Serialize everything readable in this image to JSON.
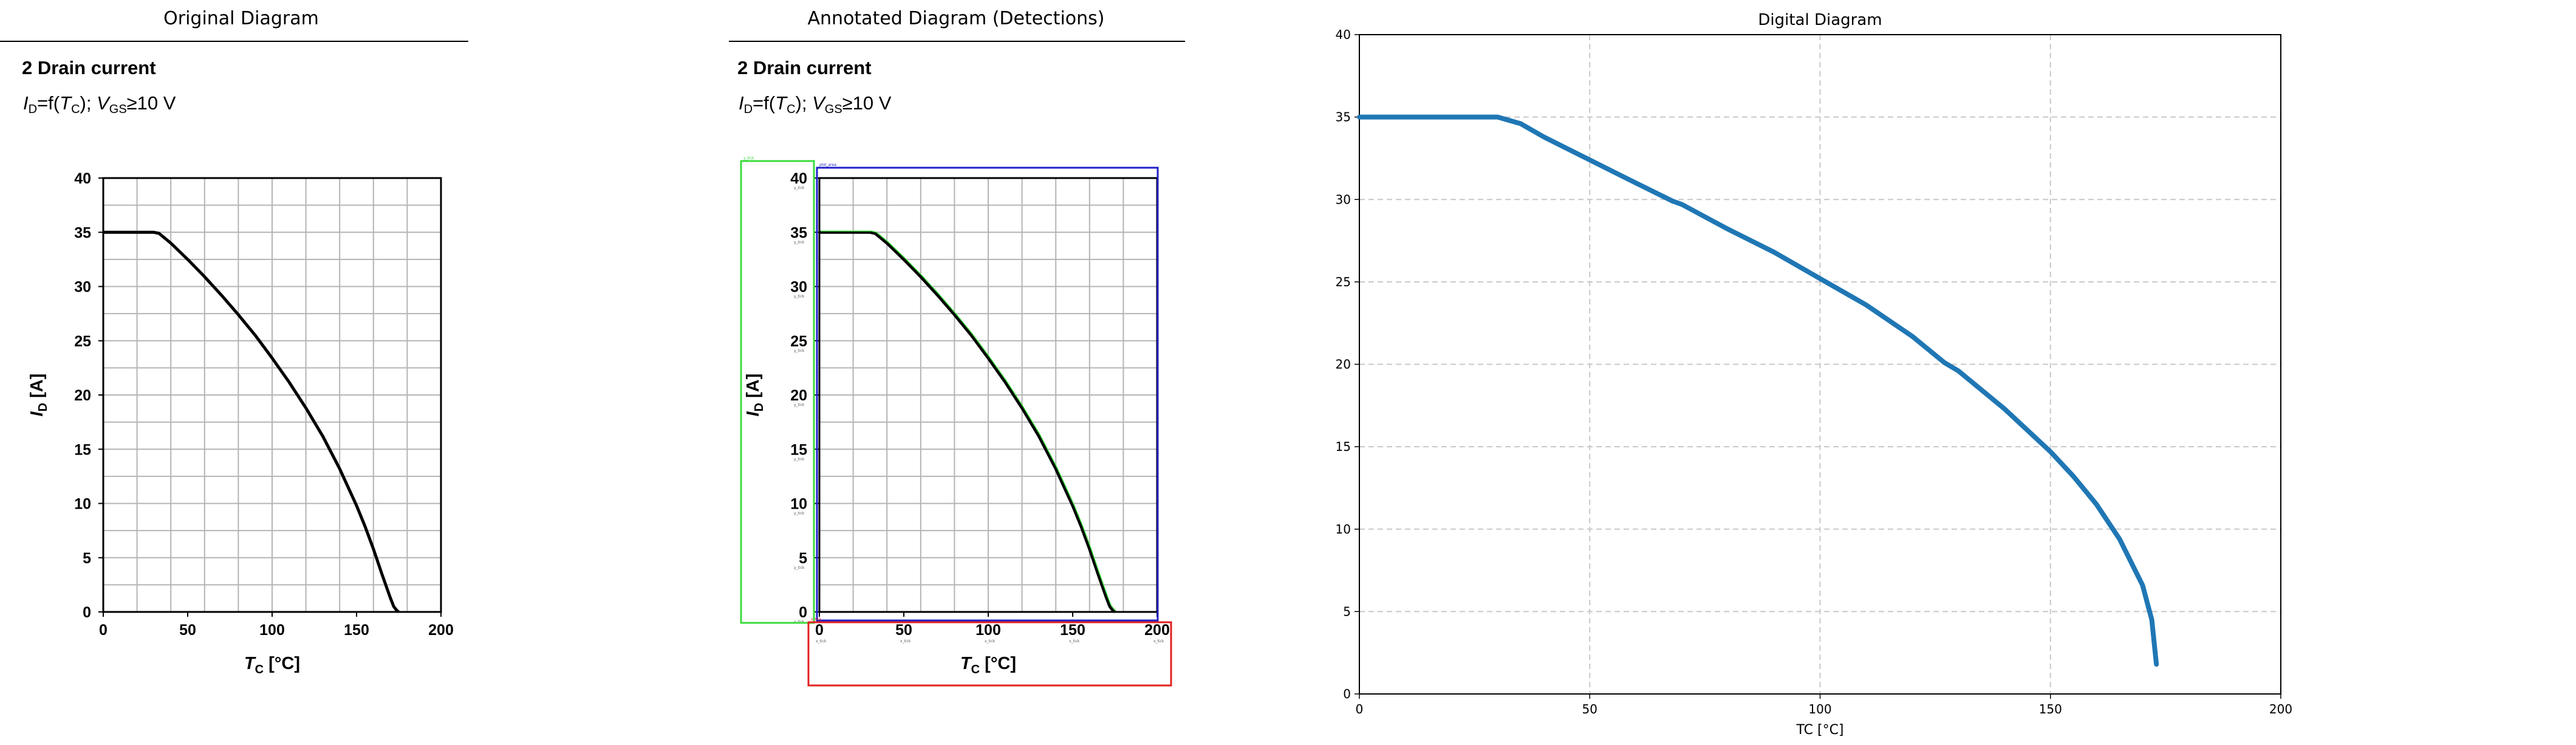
{
  "panels": {
    "original": {
      "header": "Original Diagram"
    },
    "annotated": {
      "header": "Annotated Diagram (Detections)",
      "detections": [
        {
          "label": "y_tick",
          "color": "#3cdc3c"
        },
        {
          "label": "plot_area",
          "color": "#2020c8"
        },
        {
          "label": "x_tick",
          "color": "#e02020"
        }
      ]
    },
    "digital": {
      "header": "Digital Diagram"
    }
  },
  "datasheet": {
    "title": "2 Drain current",
    "subtitle_i": "I",
    "subtitle_d": "D",
    "subtitle_f": "=f(",
    "subtitle_t": "T",
    "subtitle_c": "C",
    "subtitle_close": ");",
    "subtitle_v": "V",
    "subtitle_gs": "GS",
    "subtitle_cond": "≥10 V",
    "ylabel_i": "I",
    "ylabel_sub": "D",
    "ylabel_unit": " [A]",
    "xlabel_t": "T",
    "xlabel_sub": "C",
    "xlabel_unit": " [°C]"
  },
  "colors": {
    "curve": "#000000",
    "digital_line": "#1f77b4",
    "detected_curve": "#3cdc3c"
  },
  "chart_data": [
    {
      "type": "line",
      "title": "2 Drain current",
      "xlabel": "TC [°C]",
      "ylabel": "ID [A]",
      "xlim": [
        0,
        200
      ],
      "ylim": [
        0,
        40
      ],
      "xticks": [
        0,
        50,
        100,
        150,
        200
      ],
      "yticks": [
        0,
        5,
        10,
        15,
        20,
        25,
        30,
        35,
        40
      ],
      "grid": true,
      "series": [
        {
          "x": [
            0,
            10,
            20,
            30,
            33,
            40,
            50,
            60,
            70,
            80,
            90,
            100,
            110,
            120,
            130,
            140,
            150,
            155,
            160,
            165,
            170,
            172,
            174,
            175
          ],
          "y": [
            35,
            35,
            35,
            35,
            34.9,
            34.0,
            32.5,
            30.9,
            29.2,
            27.4,
            25.5,
            23.4,
            21.2,
            18.8,
            16.2,
            13.2,
            9.8,
            7.9,
            5.8,
            3.5,
            1.3,
            0.5,
            0.1,
            0
          ]
        }
      ]
    },
    {
      "type": "line",
      "title": "Digital Diagram",
      "xlabel": "TC [°C]",
      "ylabel": "",
      "xlim": [
        0,
        200
      ],
      "ylim": [
        0,
        40
      ],
      "xticks": [
        0,
        50,
        100,
        150,
        200
      ],
      "yticks": [
        0,
        5,
        10,
        15,
        20,
        25,
        30,
        35,
        40
      ],
      "grid": true,
      "series": [
        {
          "x": [
            0,
            10,
            20,
            30,
            35,
            40,
            50,
            60,
            68,
            70,
            80,
            90,
            100,
            110,
            120,
            127,
            130,
            140,
            150,
            155,
            160,
            165,
            170,
            172,
            173
          ],
          "y": [
            35,
            35,
            35,
            35,
            34.6,
            33.8,
            32.4,
            31.0,
            29.9,
            29.7,
            28.2,
            26.8,
            25.2,
            23.6,
            21.7,
            20.1,
            19.6,
            17.3,
            14.7,
            13.2,
            11.5,
            9.4,
            6.6,
            4.5,
            1.8
          ]
        }
      ]
    }
  ]
}
